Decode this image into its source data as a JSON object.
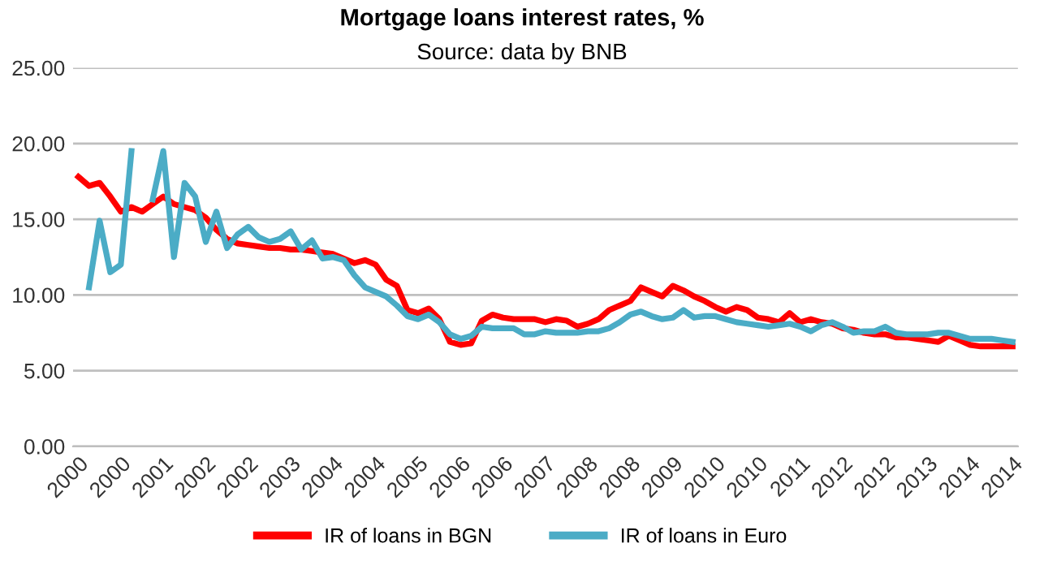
{
  "chart_data": {
    "type": "line",
    "title": "Mortgage loans interest rates, %",
    "subtitle": "Source: data by BNB",
    "categories": [
      "2000",
      null,
      null,
      null,
      "2000",
      null,
      null,
      null,
      "2001",
      null,
      null,
      null,
      "2002",
      null,
      null,
      null,
      "2002",
      null,
      null,
      null,
      "2003",
      null,
      null,
      null,
      "2004",
      null,
      null,
      null,
      "2004",
      null,
      null,
      null,
      "2005",
      null,
      null,
      null,
      "2006",
      null,
      null,
      null,
      "2006",
      null,
      null,
      null,
      "2007",
      null,
      null,
      null,
      "2008",
      null,
      null,
      null,
      "2008",
      null,
      null,
      null,
      "2009",
      null,
      null,
      null,
      "2010",
      null,
      null,
      null,
      "2010",
      null,
      null,
      null,
      "2011",
      null,
      null,
      null,
      "2012",
      null,
      null,
      null,
      "2012",
      null,
      null,
      null,
      "2013",
      null,
      null,
      null,
      "2014",
      null,
      null,
      null,
      "2014"
    ],
    "series": [
      {
        "name": "IR of loans in BGN",
        "color": "#ff0000",
        "values": [
          17.8,
          17.2,
          17.4,
          16.5,
          15.5,
          15.8,
          15.5,
          16.0,
          16.5,
          16.0,
          15.8,
          15.6,
          15.1,
          14.3,
          13.7,
          13.4,
          13.3,
          13.2,
          13.1,
          13.1,
          13.0,
          13.0,
          12.9,
          12.8,
          12.7,
          12.4,
          12.1,
          12.3,
          12.0,
          11.0,
          10.6,
          9.0,
          8.8,
          9.1,
          8.4,
          6.9,
          6.7,
          6.8,
          8.3,
          8.7,
          8.5,
          8.4,
          8.4,
          8.4,
          8.2,
          8.4,
          8.3,
          7.9,
          8.1,
          8.4,
          9.0,
          9.3,
          9.6,
          10.5,
          10.2,
          9.9,
          10.6,
          10.3,
          9.9,
          9.6,
          9.2,
          8.9,
          9.2,
          9.0,
          8.5,
          8.4,
          8.2,
          8.8,
          8.2,
          8.4,
          8.2,
          8.1,
          7.8,
          7.7,
          7.5,
          7.4,
          7.4,
          7.2,
          7.2,
          7.1,
          7.0,
          6.9,
          7.3,
          7.0,
          6.7,
          6.6,
          6.6,
          6.6,
          6.6
        ]
      },
      {
        "name": "IR of loans in Euro",
        "color": "#4bacc6",
        "values": [
          null,
          10.5,
          14.9,
          11.5,
          12.0,
          19.5,
          null,
          16.3,
          19.5,
          12.5,
          17.4,
          16.5,
          13.5,
          15.5,
          13.1,
          14.0,
          14.5,
          13.8,
          13.5,
          13.7,
          14.2,
          13.0,
          13.6,
          12.4,
          12.5,
          12.3,
          11.3,
          10.5,
          10.2,
          9.9,
          9.3,
          8.6,
          8.4,
          8.7,
          8.2,
          7.4,
          7.1,
          7.3,
          7.9,
          7.8,
          7.8,
          7.8,
          7.4,
          7.4,
          7.6,
          7.5,
          7.5,
          7.5,
          7.6,
          7.6,
          7.8,
          8.2,
          8.7,
          8.9,
          8.6,
          8.4,
          8.5,
          9.0,
          8.5,
          8.6,
          8.6,
          8.4,
          8.2,
          8.1,
          8.0,
          7.9,
          8.0,
          8.1,
          7.9,
          7.6,
          8.0,
          8.2,
          7.9,
          7.5,
          7.6,
          7.6,
          7.9,
          7.5,
          7.4,
          7.4,
          7.4,
          7.5,
          7.5,
          7.3,
          7.1,
          7.1,
          7.1,
          7.0,
          6.9
        ]
      }
    ],
    "ylim": [
      0,
      25
    ],
    "yticks": [
      {
        "value": 0,
        "label": "0.00"
      },
      {
        "value": 5,
        "label": "5.00"
      },
      {
        "value": 10,
        "label": "10.00"
      },
      {
        "value": 15,
        "label": "15.00"
      },
      {
        "value": 20,
        "label": "20.00"
      },
      {
        "value": 25,
        "label": "25.00"
      }
    ],
    "grid": "y",
    "legend": "bottom",
    "marker": "none",
    "line_style": "solid"
  }
}
